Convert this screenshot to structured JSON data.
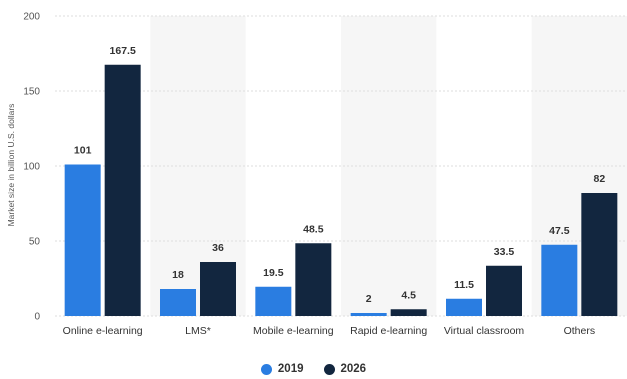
{
  "chart_data": {
    "type": "bar",
    "title": "",
    "xlabel": "",
    "ylabel": "Market size in billion U.S. dollars",
    "ylim": [
      0,
      200
    ],
    "yticks": [
      "0",
      "50",
      "100",
      "150",
      "200"
    ],
    "grid": true,
    "legend_position": "bottom",
    "categories": [
      "Online e-learning",
      "LMS*",
      "Mobile e-learning",
      "Rapid e-learning",
      "Virtual classroom",
      "Others"
    ],
    "series": [
      {
        "name": "2019",
        "color": "#2a7de1",
        "values": [
          101,
          18,
          19.5,
          2,
          11.5,
          47.5
        ],
        "labels": [
          "101",
          "18",
          "19.5",
          "2",
          "11.5",
          "47.5"
        ]
      },
      {
        "name": "2026",
        "color": "#12263f",
        "values": [
          167.5,
          36,
          48.5,
          4.5,
          33.5,
          82
        ],
        "labels": [
          "167.5",
          "36",
          "48.5",
          "4.5",
          "33.5",
          "82"
        ]
      }
    ]
  }
}
